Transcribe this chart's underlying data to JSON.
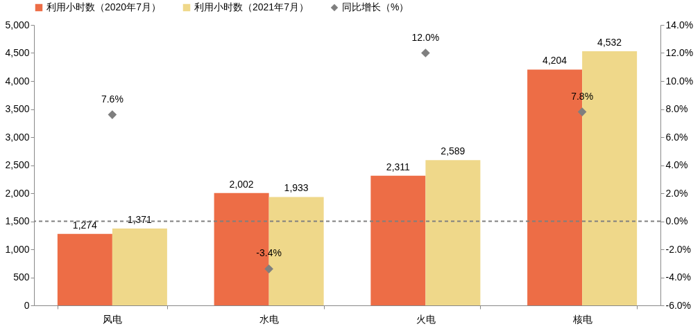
{
  "chart_data": {
    "type": "bar",
    "categories": [
      "风电",
      "水电",
      "火电",
      "核电"
    ],
    "series": [
      {
        "name": "利用小时数（2020年7月）",
        "color": "#ed6d46",
        "values": [
          1274,
          2002,
          2311,
          4204
        ],
        "value_labels": [
          "1,274",
          "2,002",
          "2,311",
          "4,204"
        ]
      },
      {
        "name": "利用小时数（2021年7月）",
        "color": "#efd88a",
        "values": [
          1371,
          1933,
          2589,
          4532
        ],
        "value_labels": [
          "1,371",
          "1,933",
          "2,589",
          "4,532"
        ]
      },
      {
        "name": "同比增长（%）",
        "type": "scatter",
        "axis": "y2",
        "color": "#7f7f7f",
        "marker": "diamond",
        "values": [
          7.6,
          -3.4,
          12.0,
          7.8
        ],
        "value_labels": [
          "7.6%",
          "-3.4%",
          "12.0%",
          "7.8%"
        ]
      }
    ],
    "ylim": [
      0,
      5000
    ],
    "yticks": [
      0,
      {
        "value": 500,
        "label": "500"
      },
      {
        "value": 1000,
        "label": "1,000"
      },
      {
        "value": 1500,
        "label": "1,500"
      },
      {
        "value": 2000,
        "label": "2,000"
      },
      {
        "value": 2500,
        "label": "2,500"
      },
      {
        "value": 3000,
        "label": "3,000"
      },
      {
        "value": 3500,
        "label": "3,500"
      },
      {
        "value": 4000,
        "label": "4,000"
      },
      {
        "value": 4500,
        "label": "4,500"
      },
      {
        "value": 5000,
        "label": "5,000"
      }
    ],
    "y2lim": [
      -6,
      14
    ],
    "y2ticks": [
      {
        "value": -6,
        "label": "-6.0%"
      },
      {
        "value": -4,
        "label": "-4.0%"
      },
      {
        "value": -2,
        "label": "-2.0%"
      },
      {
        "value": 0,
        "label": "0.0%"
      },
      {
        "value": 2,
        "label": "2.0%"
      },
      {
        "value": 4,
        "label": "4.0%"
      },
      {
        "value": 6,
        "label": "6.0%"
      },
      {
        "value": 8,
        "label": "8.0%"
      },
      {
        "value": 10,
        "label": "10.0%"
      },
      {
        "value": 12,
        "label": "12.0%"
      },
      {
        "value": 14,
        "label": "14.0%"
      }
    ],
    "ref_lines": [
      {
        "axis": "y2",
        "value": 0,
        "color": "#7f7f7f",
        "line_style": "dashed"
      }
    ],
    "legend": "top",
    "grid": false
  }
}
